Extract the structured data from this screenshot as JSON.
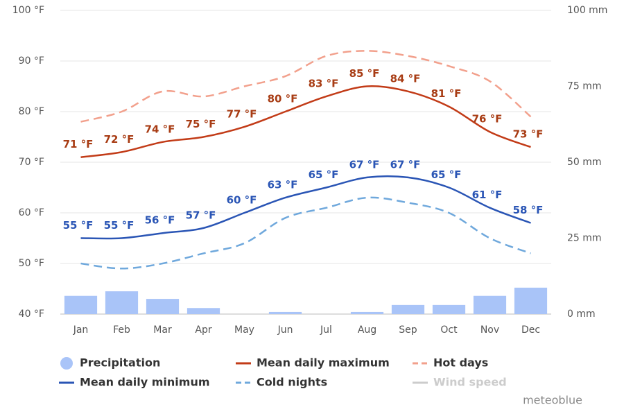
{
  "chart_data": {
    "type": "line",
    "categories": [
      "Jan",
      "Feb",
      "Mar",
      "Apr",
      "May",
      "Jun",
      "Jul",
      "Aug",
      "Sep",
      "Oct",
      "Nov",
      "Dec"
    ],
    "ylim": [
      40,
      100
    ],
    "yticks": [
      {
        "value": 40,
        "label": "40 °F"
      },
      {
        "value": 50,
        "label": "50 °F"
      },
      {
        "value": 60,
        "label": "60 °F"
      },
      {
        "value": 70,
        "label": "70 °F"
      },
      {
        "value": 80,
        "label": "80 °F"
      },
      {
        "value": 90,
        "label": "90 °F"
      },
      {
        "value": 100,
        "label": "100 °F"
      }
    ],
    "y2lim": [
      0,
      100
    ],
    "y2ticks": [
      {
        "value": 0,
        "label": "0 mm"
      },
      {
        "value": 25,
        "label": "25 mm"
      },
      {
        "value": 50,
        "label": "50 mm"
      },
      {
        "value": 75,
        "label": "75 mm"
      },
      {
        "value": 100,
        "label": "100 mm"
      }
    ],
    "grid": true,
    "legend": "bottom",
    "watermark": "meteoblue",
    "series": [
      {
        "name": "Precipitation",
        "kind": "bar",
        "axis": "y2",
        "color": "#a9c4f8",
        "values": [
          6,
          7.5,
          5,
          2,
          0,
          0.7,
          0,
          0.7,
          3,
          3,
          6,
          8.7
        ]
      },
      {
        "name": "Mean daily maximum",
        "kind": "line",
        "color": "#c23b17",
        "label_color": "#a83c14",
        "values": [
          71,
          72,
          74,
          75,
          77,
          80,
          83,
          85,
          84,
          81,
          76,
          73
        ],
        "value_labels": [
          "71 °F",
          "72 °F",
          "74 °F",
          "75 °F",
          "77 °F",
          "80 °F",
          "83 °F",
          "85 °F",
          "84 °F",
          "81 °F",
          "76 °F",
          "73 °F"
        ]
      },
      {
        "name": "Hot days",
        "kind": "line",
        "dash": true,
        "color": "#f2a08c",
        "values": [
          78,
          80,
          84,
          83,
          85,
          87,
          91,
          92,
          91,
          89,
          86,
          79
        ]
      },
      {
        "name": "Mean daily minimum",
        "kind": "line",
        "color": "#2a55b5",
        "label_color": "#2a55b5",
        "values": [
          55,
          55,
          56,
          57,
          60,
          63,
          65,
          67,
          67,
          65,
          61,
          58
        ],
        "value_labels": [
          "55 °F",
          "55 °F",
          "56 °F",
          "57 °F",
          "60 °F",
          "63 °F",
          "65 °F",
          "67 °F",
          "67 °F",
          "65 °F",
          "61 °F",
          "58 °F"
        ]
      },
      {
        "name": "Cold nights",
        "kind": "line",
        "dash": true,
        "color": "#6fa8dc",
        "values": [
          50,
          49,
          50,
          52,
          54,
          59,
          61,
          63,
          62,
          60,
          55,
          52
        ]
      },
      {
        "name": "Wind speed",
        "kind": "line",
        "visible": false,
        "color": "#cccccc"
      }
    ]
  }
}
